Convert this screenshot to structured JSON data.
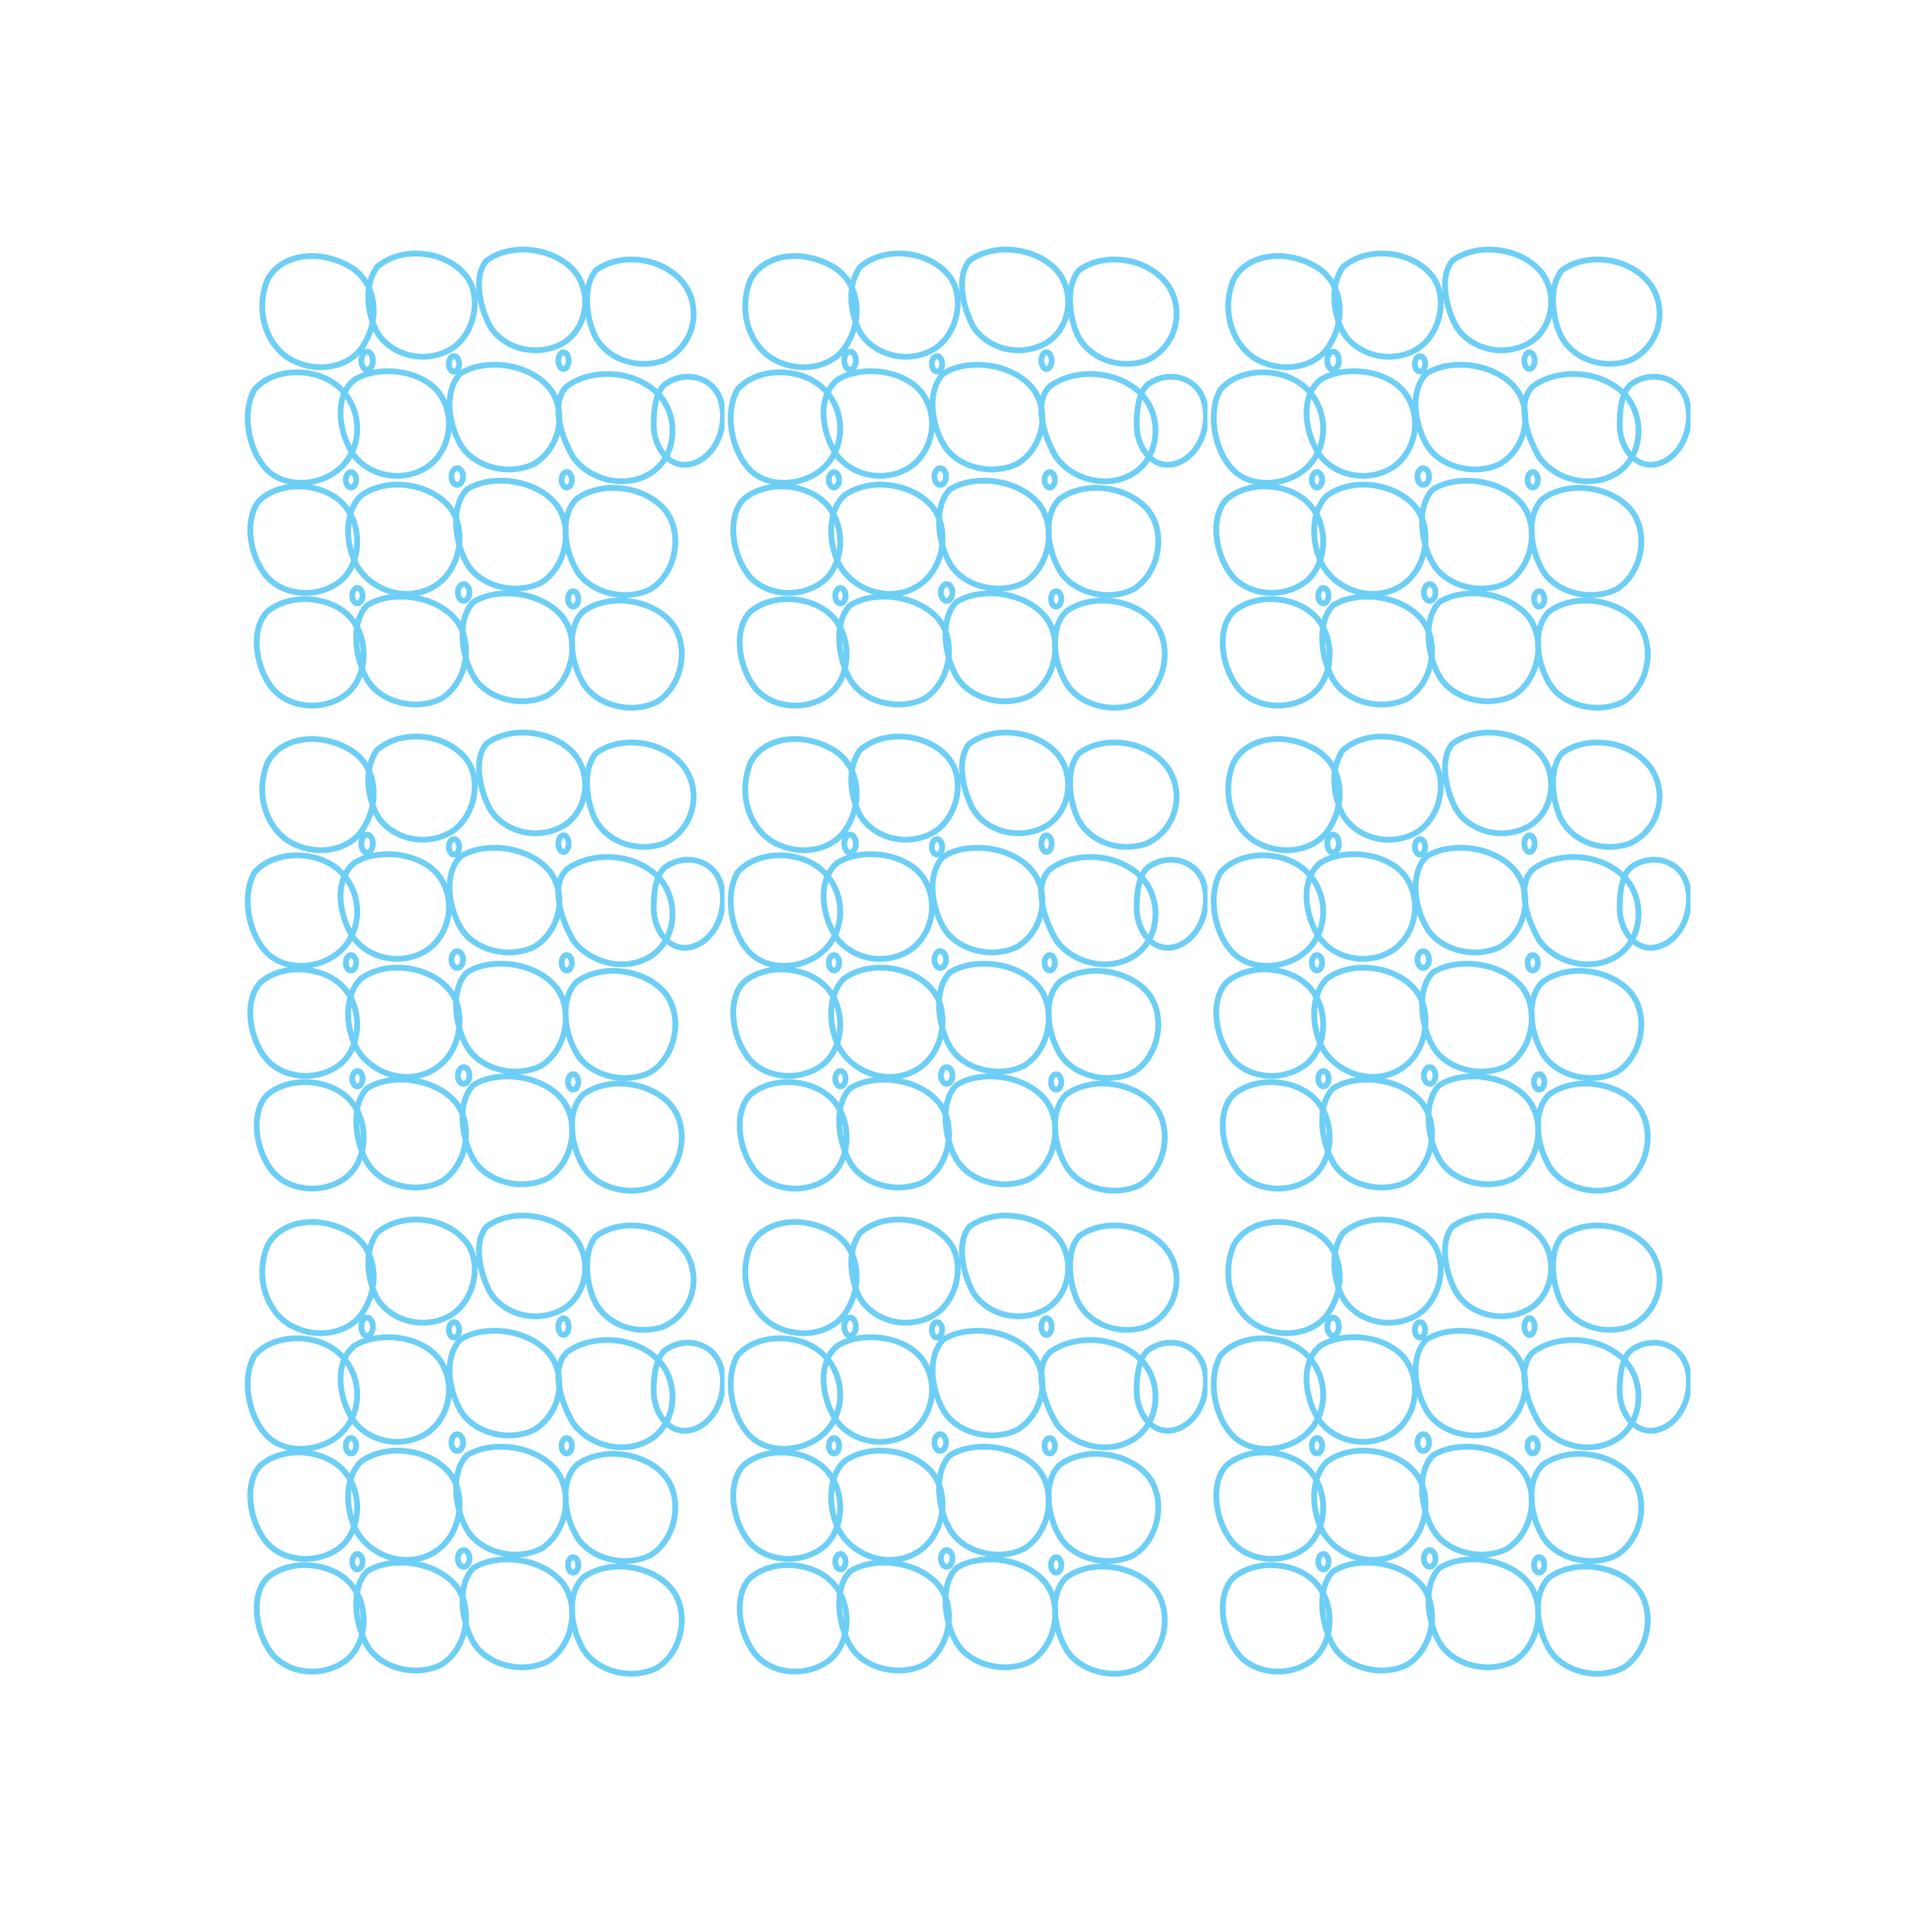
{
  "pattern": {
    "style": "organic-cell-network",
    "stroke_color": "#6ecff6",
    "background_color": "#ffffff",
    "tile_columns": 3,
    "tile_rows": 3
  }
}
